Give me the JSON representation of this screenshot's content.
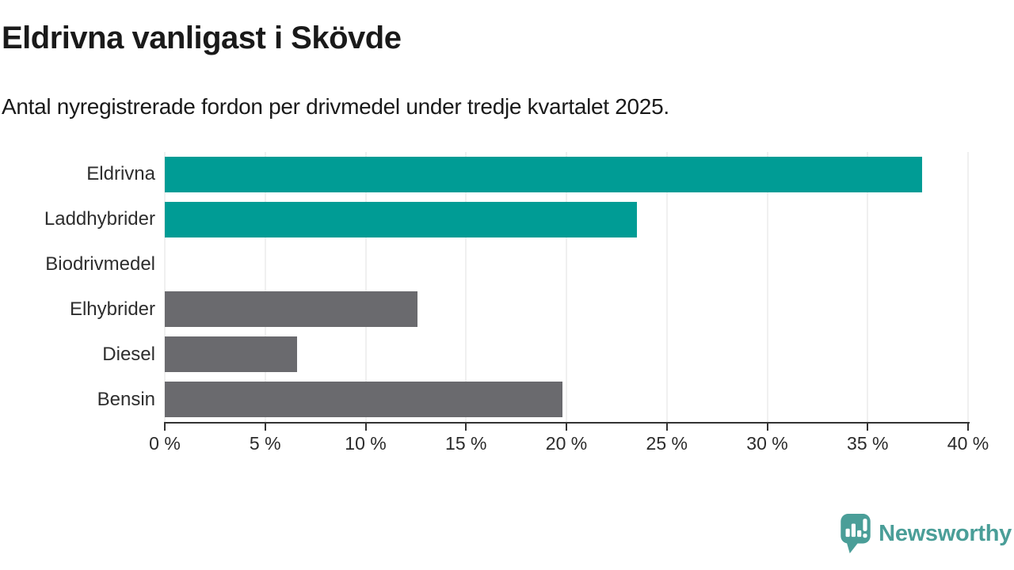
{
  "header": {
    "title": "Eldrivna vanligast i Skövde",
    "subtitle": "Antal nyregistrerade fordon per drivmedel under tredje kvartalet 2025."
  },
  "chart_data": {
    "type": "bar",
    "orientation": "horizontal",
    "title": "Eldrivna vanligast i Skövde",
    "subtitle": "Antal nyregistrerade fordon per drivmedel under tredje kvartalet 2025.",
    "categories": [
      "Eldrivna",
      "Laddhybrider",
      "Biodrivmedel",
      "Elhybrider",
      "Diesel",
      "Bensin"
    ],
    "values": [
      37.7,
      23.5,
      0,
      12.6,
      6.6,
      19.8
    ],
    "unit": "%",
    "bar_colors": [
      "#009c95",
      "#009c95",
      "#6a6a6e",
      "#6a6a6e",
      "#6a6a6e",
      "#6a6a6e"
    ],
    "xlim": [
      0,
      40
    ],
    "x_tick_step": 5,
    "x_tick_labels": [
      "0 %",
      "5 %",
      "10 %",
      "15 %",
      "20 %",
      "25 %",
      "30 %",
      "35 %",
      "40 %"
    ],
    "grid": true,
    "legend": "none"
  },
  "colors": {
    "accent_teal": "#009c95",
    "bar_gray": "#6a6a6e",
    "gridline": "#e0e0e0",
    "axis": "#333333",
    "title_text": "#1a1a1a",
    "label_text": "#2e2e2e",
    "brand_teal": "#4a9e98"
  },
  "footer": {
    "brand": "Newsworthy",
    "logo_icon": "newsworthy-bubble-chart-icon"
  }
}
